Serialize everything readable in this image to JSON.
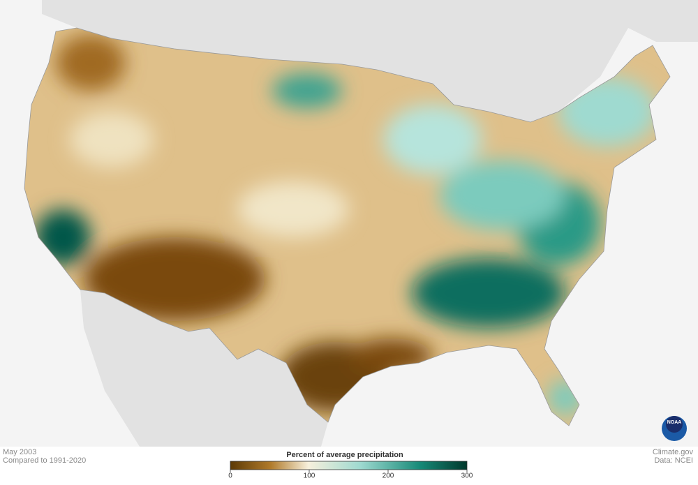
{
  "date": "May 2003",
  "baseline": "Compared to 1991-2020",
  "legend": {
    "title": "Percent of average precipitation",
    "range": [
      0,
      300
    ],
    "ticks": [
      0,
      100,
      200,
      300
    ]
  },
  "credit": {
    "site": "Climate.gov",
    "source": "Data: NCEI",
    "logo": "NOAA"
  }
}
